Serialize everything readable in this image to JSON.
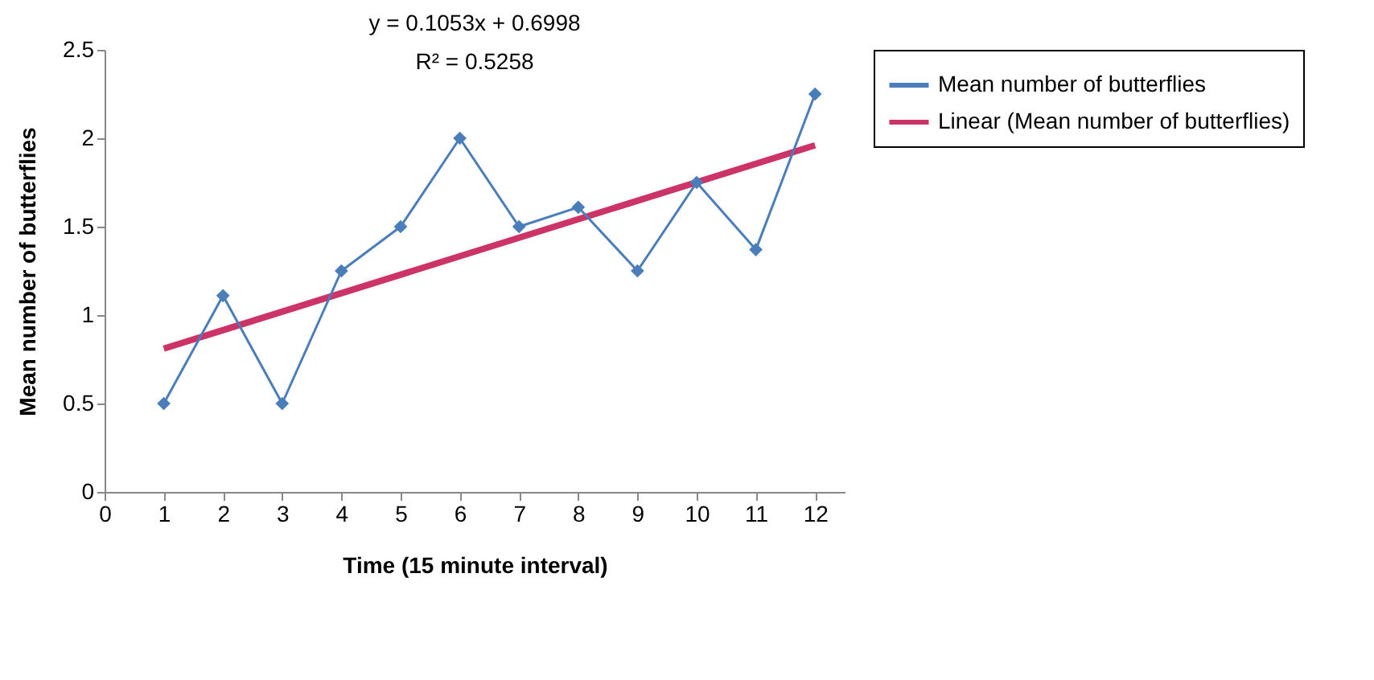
{
  "chart_data": {
    "type": "line",
    "xlabel": "Time (15 minute interval)",
    "ylabel": "Mean number of butterflies",
    "annotations": [
      "y = 0.1053x + 0.6998",
      "R² = 0.5258"
    ],
    "x": [
      1,
      2,
      3,
      4,
      5,
      6,
      7,
      8,
      9,
      10,
      11,
      12
    ],
    "series": [
      {
        "name": "Mean number of butterflies",
        "color": "#4a7ebb",
        "values": [
          0.5,
          1.11,
          0.5,
          1.25,
          1.5,
          2.0,
          1.5,
          1.61,
          1.25,
          1.75,
          1.37,
          2.25
        ]
      },
      {
        "name": "Linear (Mean number of butterflies)",
        "color": "#cc3366",
        "type": "line",
        "marker": "none",
        "x": [
          1,
          12
        ],
        "values": [
          0.81,
          1.96
        ]
      }
    ],
    "xlim": [
      0,
      12.5
    ],
    "xticks": [
      0,
      1,
      2,
      3,
      4,
      5,
      6,
      7,
      8,
      9,
      10,
      11,
      12
    ],
    "ylim": [
      0,
      2.5
    ],
    "yticks": [
      0,
      0.5,
      1,
      1.5,
      2,
      2.5
    ],
    "grid": false,
    "legend": "right",
    "marker": "diamond",
    "line_style": "solid"
  }
}
